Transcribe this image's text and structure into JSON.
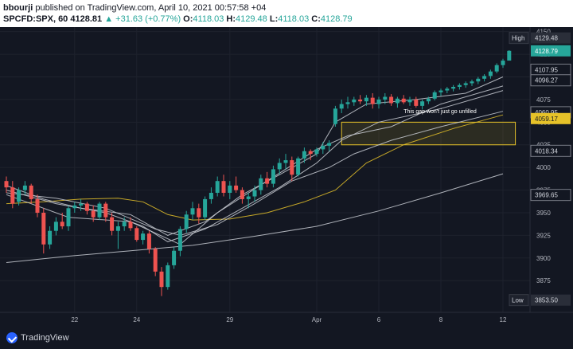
{
  "header": {
    "author": "bbourji",
    "published_text": "published on TradingView.com, April 10, 2021 00:57:58 +04",
    "symbol": "SPCFD:SPX, 60",
    "last": "4128.81",
    "arrow": "▲",
    "change": "+31.63 (+0.77%)",
    "o_label": "O:",
    "o_val": "4118.03",
    "h_label": "H:",
    "h_val": "4129.48",
    "l_label": "L:",
    "l_val": "4118.03",
    "c_label": "C:",
    "c_val": "4128.79"
  },
  "footer": {
    "brand": "TradingView"
  },
  "colors": {
    "background": "#131722",
    "up": "#26a69a",
    "down": "#ef5350",
    "ma_yellow": "#e6c229",
    "ma_white": "#c9ccd4",
    "highlight_box": "#e6c229"
  },
  "chart_data": {
    "type": "candlestick",
    "ylim": [
      3840,
      4155
    ],
    "y_ticks": [
      "4150",
      "4125",
      "4100",
      "4075",
      "4050",
      "4025",
      "4000",
      "3975",
      "3950",
      "3925",
      "3900",
      "3875"
    ],
    "x_ticks": [
      {
        "label": "22",
        "index": 11
      },
      {
        "label": "24",
        "index": 21
      },
      {
        "label": "29",
        "index": 36
      },
      {
        "label": "Apr",
        "index": 50
      },
      {
        "label": "6",
        "index": 60
      },
      {
        "label": "8",
        "index": 70
      },
      {
        "label": "12",
        "index": 80
      }
    ],
    "price_labels": [
      {
        "label": "High",
        "value": "4129.48",
        "y": 4143,
        "style": "high"
      },
      {
        "label": "",
        "value": "4128.79",
        "y": 4128.79,
        "style": "current"
      },
      {
        "label": "",
        "value": "4107.95",
        "y": 4107.95,
        "style": "plain"
      },
      {
        "label": "",
        "value": "4096.27",
        "y": 4096.27,
        "style": "plain"
      },
      {
        "label": "",
        "value": "4060.95",
        "y": 4060.95,
        "style": "plain"
      },
      {
        "label": "",
        "value": "4059.17",
        "y": 4054,
        "style": "yellow"
      },
      {
        "label": "",
        "value": "4018.34",
        "y": 4018.34,
        "style": "plain"
      },
      {
        "label": "",
        "value": "3969.65",
        "y": 3969.65,
        "style": "plain"
      },
      {
        "label": "Low",
        "value": "3853.50",
        "y": 3853.5,
        "style": "low"
      }
    ],
    "annotation": {
      "text": "This gap won't just go unfilled",
      "x_index": 64,
      "y": 4060
    },
    "gap_zone": {
      "from_index": 54,
      "to_index": 82,
      "y_low": 4025,
      "y_high": 4050
    },
    "candles": [
      [
        3985,
        3990,
        3972,
        3978
      ],
      [
        3978,
        3985,
        3955,
        3960
      ],
      [
        3962,
        3978,
        3958,
        3975
      ],
      [
        3975,
        3985,
        3970,
        3980
      ],
      [
        3980,
        3982,
        3960,
        3965
      ],
      [
        3965,
        3970,
        3945,
        3950
      ],
      [
        3950,
        3955,
        3905,
        3915
      ],
      [
        3915,
        3935,
        3910,
        3930
      ],
      [
        3930,
        3945,
        3925,
        3940
      ],
      [
        3940,
        3950,
        3932,
        3935
      ],
      [
        3935,
        3958,
        3930,
        3955
      ],
      [
        3955,
        3962,
        3950,
        3958
      ],
      [
        3958,
        3965,
        3952,
        3960
      ],
      [
        3960,
        3962,
        3948,
        3952
      ],
      [
        3952,
        3958,
        3940,
        3945
      ],
      [
        3945,
        3962,
        3942,
        3960
      ],
      [
        3960,
        3962,
        3940,
        3945
      ],
      [
        3945,
        3950,
        3925,
        3930
      ],
      [
        3930,
        3940,
        3910,
        3935
      ],
      [
        3935,
        3945,
        3930,
        3940
      ],
      [
        3940,
        3945,
        3930,
        3933
      ],
      [
        3933,
        3935,
        3918,
        3920
      ],
      [
        3920,
        3930,
        3915,
        3927
      ],
      [
        3927,
        3930,
        3905,
        3910
      ],
      [
        3910,
        3912,
        3880,
        3885
      ],
      [
        3885,
        3890,
        3858,
        3868
      ],
      [
        3868,
        3895,
        3865,
        3892
      ],
      [
        3892,
        3912,
        3888,
        3908
      ],
      [
        3908,
        3935,
        3902,
        3932
      ],
      [
        3932,
        3952,
        3928,
        3948
      ],
      [
        3948,
        3962,
        3942,
        3955
      ],
      [
        3955,
        3960,
        3938,
        3945
      ],
      [
        3945,
        3968,
        3942,
        3965
      ],
      [
        3965,
        3978,
        3960,
        3972
      ],
      [
        3972,
        3990,
        3968,
        3985
      ],
      [
        3985,
        3992,
        3968,
        3972
      ],
      [
        3972,
        3985,
        3965,
        3980
      ],
      [
        3980,
        3990,
        3972,
        3975
      ],
      [
        3975,
        3978,
        3960,
        3965
      ],
      [
        3965,
        3972,
        3955,
        3968
      ],
      [
        3968,
        3980,
        3962,
        3975
      ],
      [
        3975,
        3992,
        3970,
        3988
      ],
      [
        3988,
        3995,
        3978,
        3982
      ],
      [
        3982,
        4002,
        3978,
        3998
      ],
      [
        3998,
        4010,
        3992,
        4005
      ],
      [
        4005,
        4015,
        3998,
        4008
      ],
      [
        4008,
        4012,
        3985,
        3992
      ],
      [
        3992,
        4012,
        3990,
        4010
      ],
      [
        4010,
        4022,
        4005,
        4018
      ],
      [
        4018,
        4020,
        4008,
        4015
      ],
      [
        4015,
        4022,
        4012,
        4020
      ],
      [
        4020,
        4028,
        4015,
        4024
      ],
      [
        4024,
        4030,
        4018,
        4027
      ],
      [
        4048,
        4068,
        4045,
        4065
      ],
      [
        4065,
        4075,
        4060,
        4070
      ],
      [
        4070,
        4078,
        4065,
        4072
      ],
      [
        4072,
        4078,
        4068,
        4075
      ],
      [
        4075,
        4080,
        4070,
        4073
      ],
      [
        4073,
        4080,
        4068,
        4077
      ],
      [
        4077,
        4082,
        4065,
        4070
      ],
      [
        4070,
        4078,
        4065,
        4075
      ],
      [
        4075,
        4082,
        4070,
        4078
      ],
      [
        4078,
        4081,
        4068,
        4071
      ],
      [
        4071,
        4078,
        4066,
        4076
      ],
      [
        4076,
        4080,
        4070,
        4072
      ],
      [
        4072,
        4078,
        4068,
        4075
      ],
      [
        4075,
        4078,
        4066,
        4068
      ],
      [
        4068,
        4075,
        4064,
        4073
      ],
      [
        4073,
        4078,
        4070,
        4076
      ],
      [
        4076,
        4085,
        4074,
        4083
      ],
      [
        4083,
        4087,
        4079,
        4085
      ],
      [
        4085,
        4089,
        4082,
        4087
      ],
      [
        4087,
        4091,
        4084,
        4089
      ],
      [
        4089,
        4093,
        4086,
        4091
      ],
      [
        4091,
        4095,
        4088,
        4093
      ],
      [
        4093,
        4097,
        4090,
        4095
      ],
      [
        4095,
        4100,
        4092,
        4098
      ],
      [
        4098,
        4103,
        4095,
        4101
      ],
      [
        4101,
        4108,
        4098,
        4106
      ],
      [
        4106,
        4115,
        4104,
        4113
      ],
      [
        4113,
        4120,
        4110,
        4118
      ],
      [
        4118,
        4129.48,
        4118.03,
        4128.79
      ]
    ],
    "moving_averages": [
      {
        "color": "#e6c229",
        "points": [
          [
            0,
            3960
          ],
          [
            6,
            3962
          ],
          [
            12,
            3965
          ],
          [
            18,
            3966
          ],
          [
            22,
            3962
          ],
          [
            26,
            3948
          ],
          [
            30,
            3942
          ],
          [
            36,
            3943
          ],
          [
            42,
            3950
          ],
          [
            48,
            3962
          ],
          [
            53,
            3975
          ],
          [
            58,
            4005
          ],
          [
            64,
            4025
          ],
          [
            72,
            4043
          ],
          [
            80,
            4058
          ]
        ]
      },
      {
        "color": "#c9ccd4",
        "points": [
          [
            0,
            3895
          ],
          [
            10,
            3902
          ],
          [
            20,
            3908
          ],
          [
            30,
            3914
          ],
          [
            40,
            3924
          ],
          [
            50,
            3935
          ],
          [
            60,
            3952
          ],
          [
            70,
            3972
          ],
          [
            80,
            3993
          ]
        ]
      },
      {
        "color": "#c9ccd4",
        "points": [
          [
            0,
            3972
          ],
          [
            8,
            3966
          ],
          [
            16,
            3955
          ],
          [
            24,
            3932
          ],
          [
            28,
            3925
          ],
          [
            34,
            3937
          ],
          [
            40,
            3960
          ],
          [
            46,
            3985
          ],
          [
            52,
            4000
          ],
          [
            56,
            4015
          ],
          [
            62,
            4030
          ],
          [
            70,
            4045
          ],
          [
            80,
            4062
          ]
        ]
      },
      {
        "color": "#c9ccd4",
        "points": [
          [
            0,
            3975
          ],
          [
            8,
            3960
          ],
          [
            16,
            3950
          ],
          [
            22,
            3935
          ],
          [
            26,
            3918
          ],
          [
            32,
            3932
          ],
          [
            38,
            3955
          ],
          [
            44,
            3978
          ],
          [
            50,
            4005
          ],
          [
            54,
            4030
          ],
          [
            60,
            4050
          ],
          [
            70,
            4065
          ],
          [
            80,
            4085
          ]
        ]
      },
      {
        "color": "#c9ccd4",
        "points": [
          [
            0,
            3980
          ],
          [
            6,
            3965
          ],
          [
            12,
            3955
          ],
          [
            20,
            3948
          ],
          [
            26,
            3925
          ],
          [
            32,
            3940
          ],
          [
            38,
            3970
          ],
          [
            44,
            3992
          ],
          [
            50,
            4015
          ],
          [
            53,
            4050
          ],
          [
            58,
            4070
          ],
          [
            66,
            4075
          ],
          [
            74,
            4082
          ],
          [
            80,
            4100
          ]
        ]
      },
      {
        "color": "#c9ccd4",
        "points": [
          [
            0,
            3970
          ],
          [
            10,
            3945
          ],
          [
            20,
            3940
          ],
          [
            28,
            3915
          ],
          [
            34,
            3950
          ],
          [
            42,
            3985
          ],
          [
            50,
            4020
          ],
          [
            55,
            4035
          ],
          [
            62,
            4045
          ],
          [
            70,
            4070
          ],
          [
            80,
            4090
          ]
        ]
      }
    ]
  }
}
